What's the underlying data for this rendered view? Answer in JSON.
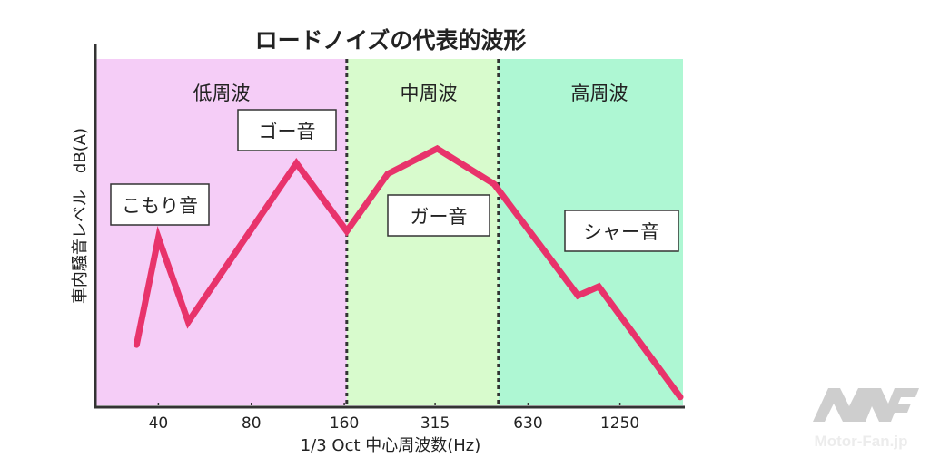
{
  "chart_data": {
    "type": "line",
    "title": "ロードノイズの代表的波形",
    "xlabel": "1/3 Oct 中心周波数(Hz)",
    "ylabel": "車内騒音レベル　dB(A)",
    "xscale": "log",
    "xlim": [
      25,
      2000
    ],
    "ylim": [
      0,
      100
    ],
    "grid": false,
    "x_ticks": [
      40,
      80,
      160,
      315,
      630,
      1250
    ],
    "x_tick_labels": [
      "40",
      "80",
      "160",
      "315",
      "630",
      "1250"
    ],
    "bands": [
      {
        "name": "低周波",
        "from": 25,
        "to": 163,
        "color": "#f5cdf7"
      },
      {
        "name": "中周波",
        "from": 163,
        "to": 505,
        "color": "#d8fbcd"
      },
      {
        "name": "高周波",
        "from": 505,
        "to": 2000,
        "color": "#aef7d3"
      }
    ],
    "series": [
      {
        "name": "ロードノイズ",
        "color": "#e8336b",
        "x": [
          34,
          40,
          50,
          112,
          163,
          221,
          320,
          489,
          914,
          1067,
          1960
        ],
        "y": [
          17.5,
          48.4,
          24.1,
          69.9,
          50.3,
          66.8,
          74.1,
          63.9,
          31.7,
          34.3,
          2.4
        ]
      }
    ],
    "annotations": [
      "こもり音",
      "ゴー音",
      "ガー音",
      "シャー音"
    ]
  },
  "watermark": "Motor-Fan.jp"
}
